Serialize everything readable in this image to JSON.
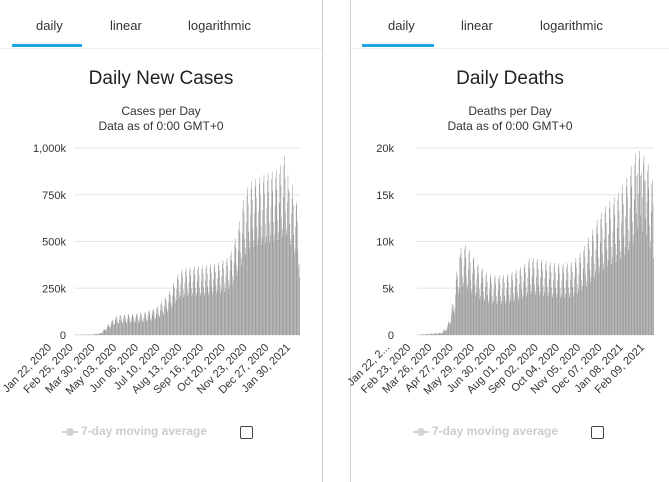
{
  "tabs": [
    "daily",
    "linear",
    "logarithmic"
  ],
  "active_tab": "daily",
  "legend_label": "7-day moving average",
  "colors": {
    "bar": "#999999",
    "grid": "#e6e6e6",
    "accent": "#1ea7e8",
    "legend": "#cccccc"
  },
  "chart_data": [
    {
      "type": "bar",
      "title": "Daily New Cases",
      "subtitle": [
        "Cases per Day",
        "Data as of 0:00 GMT+0"
      ],
      "ylim": [
        0,
        1000000
      ],
      "yticks": [
        {
          "value": 0,
          "label": "0"
        },
        {
          "value": 250000,
          "label": "250k"
        },
        {
          "value": 500000,
          "label": "500k"
        },
        {
          "value": 750000,
          "label": "750k"
        },
        {
          "value": 1000000,
          "label": "1,000k"
        }
      ],
      "xtick_labels": [
        "Jan 22, 2020",
        "Feb 25, 2020",
        "Mar 30, 2020",
        "May 03, 2020",
        "Jun 06, 2020",
        "Jul 10, 2020",
        "Aug 13, 2020",
        "Sep 16, 2020",
        "Oct 20, 2020",
        "Nov 23, 2020",
        "Dec 27, 2020",
        "Jan 30, 2021"
      ],
      "days": 386,
      "trend": [
        [
          0,
          500
        ],
        [
          30,
          2000
        ],
        [
          45,
          8000
        ],
        [
          60,
          50000
        ],
        [
          70,
          78000
        ],
        [
          80,
          85000
        ],
        [
          100,
          88000
        ],
        [
          120,
          95000
        ],
        [
          140,
          115000
        ],
        [
          160,
          170000
        ],
        [
          170,
          220000
        ],
        [
          180,
          270000
        ],
        [
          190,
          280000
        ],
        [
          200,
          285000
        ],
        [
          220,
          290000
        ],
        [
          240,
          300000
        ],
        [
          260,
          320000
        ],
        [
          270,
          360000
        ],
        [
          280,
          450000
        ],
        [
          290,
          580000
        ],
        [
          300,
          640000
        ],
        [
          315,
          660000
        ],
        [
          330,
          680000
        ],
        [
          345,
          690000
        ],
        [
          355,
          720000
        ],
        [
          360,
          760000
        ],
        [
          365,
          700000
        ],
        [
          372,
          640000
        ],
        [
          380,
          560000
        ],
        [
          385,
          470000
        ]
      ],
      "weekly_amplitude": 0.28,
      "peaks": [
        {
          "day": 360,
          "value": 840000
        },
        {
          "day": 366,
          "value": 780000
        },
        {
          "day": 372,
          "value": 730000
        }
      ],
      "end_value": 310000
    },
    {
      "type": "bar",
      "title": "Daily Deaths",
      "subtitle": [
        "Deaths per Day",
        "Data as of 0:00 GMT+0"
      ],
      "ylim": [
        0,
        20000
      ],
      "yticks": [
        {
          "value": 0,
          "label": "0"
        },
        {
          "value": 5000,
          "label": "5k"
        },
        {
          "value": 10000,
          "label": "10k"
        },
        {
          "value": 15000,
          "label": "15k"
        },
        {
          "value": 20000,
          "label": "20k"
        }
      ],
      "xtick_labels": [
        "Jan 22, 2...",
        "Feb 23, 2020",
        "Mar 26, 2020",
        "Apr 27, 2020",
        "May 29, 2020",
        "Jun 30, 2020",
        "Aug 01, 2020",
        "Sep 02, 2020",
        "Oct 04, 2020",
        "Nov 05, 2020",
        "Dec 07, 2020",
        "Jan 08, 2021",
        "Feb 09, 2021"
      ],
      "days": 390,
      "trend": [
        [
          0,
          20
        ],
        [
          40,
          200
        ],
        [
          50,
          800
        ],
        [
          60,
          3000
        ],
        [
          68,
          6500
        ],
        [
          75,
          7500
        ],
        [
          85,
          7000
        ],
        [
          100,
          5800
        ],
        [
          115,
          5000
        ],
        [
          130,
          4800
        ],
        [
          145,
          4900
        ],
        [
          160,
          5200
        ],
        [
          175,
          5700
        ],
        [
          185,
          6300
        ],
        [
          200,
          6200
        ],
        [
          220,
          5900
        ],
        [
          240,
          5800
        ],
        [
          255,
          5900
        ],
        [
          270,
          6800
        ],
        [
          285,
          8200
        ],
        [
          300,
          9800
        ],
        [
          315,
          10800
        ],
        [
          330,
          11500
        ],
        [
          345,
          12800
        ],
        [
          355,
          14200
        ],
        [
          362,
          15200
        ],
        [
          370,
          14800
        ],
        [
          378,
          14200
        ],
        [
          385,
          13200
        ],
        [
          389,
          12000
        ]
      ],
      "weekly_amplitude": 0.32,
      "peaks": [
        {
          "day": 70,
          "value": 8300
        },
        {
          "day": 362,
          "value": 17200
        },
        {
          "day": 369,
          "value": 17400
        },
        {
          "day": 376,
          "value": 16500
        }
      ],
      "end_value": 8200
    }
  ]
}
